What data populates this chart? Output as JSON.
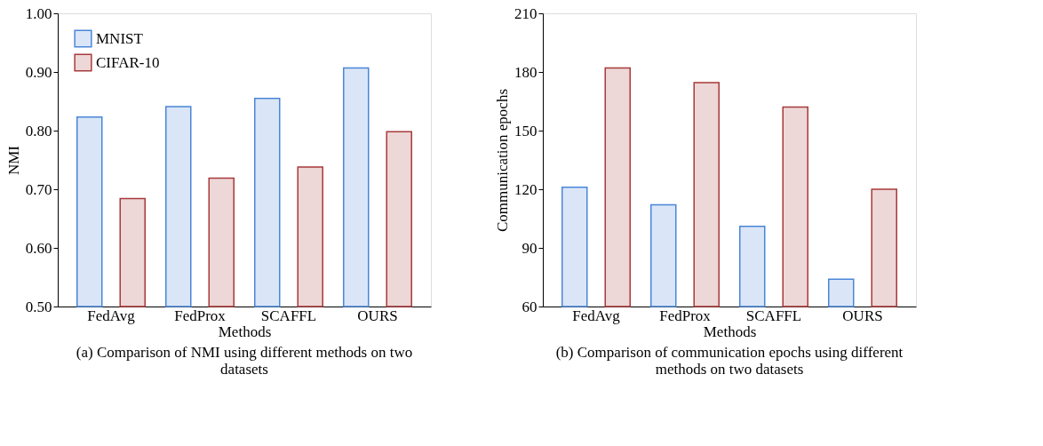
{
  "chart_data": [
    {
      "type": "bar",
      "title": "(a) Comparison of NMI using different methods on two datasets",
      "xlabel": "Methods",
      "ylabel": "NMI",
      "categories": [
        "FedAvg",
        "FedProx",
        "SCAFFL",
        "OURS"
      ],
      "series": [
        {
          "name": "MNIST",
          "color": "#4a86d8",
          "values": [
            0.823,
            0.841,
            0.855,
            0.907
          ]
        },
        {
          "name": "CIFAR-10",
          "color": "#a83a3a",
          "values": [
            0.684,
            0.719,
            0.738,
            0.798
          ]
        }
      ],
      "ylim": [
        0.5,
        1.0
      ],
      "yticks": [
        {
          "value": 0.5,
          "label": "0.50"
        },
        {
          "value": 0.6,
          "label": "0.60"
        },
        {
          "value": 0.7,
          "label": "0.70"
        },
        {
          "value": 0.8,
          "label": "0.80"
        },
        {
          "value": 0.9,
          "label": "0.90"
        },
        {
          "value": 1.0,
          "label": "1.00"
        }
      ],
      "grid": false,
      "legend": "top left"
    },
    {
      "type": "bar",
      "title": "(b) Comparison of communication epochs using different methods on two datasets",
      "xlabel": "Methods",
      "ylabel": "Communication epochs",
      "categories": [
        "FedAvg",
        "FedProx",
        "SCAFFL",
        "OURS"
      ],
      "series": [
        {
          "name": "MNIST",
          "color": "#4a86d8",
          "values": [
            121,
            112,
            101,
            74
          ]
        },
        {
          "name": "CIFAR-10",
          "color": "#a83a3a",
          "values": [
            182,
            174.5,
            162,
            120
          ]
        }
      ],
      "ylim": [
        60,
        210
      ],
      "yticks": [
        60,
        90,
        120,
        150,
        180,
        210
      ],
      "grid": false,
      "legend": "top left"
    }
  ]
}
